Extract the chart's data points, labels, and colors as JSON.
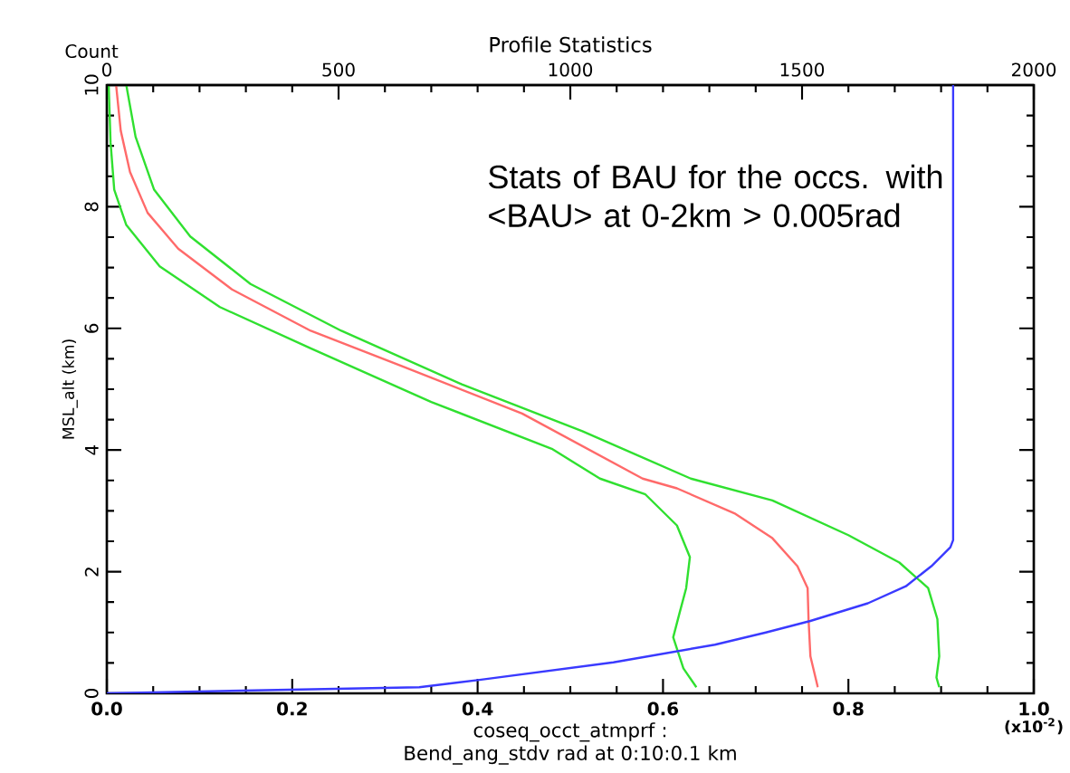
{
  "chart_data": {
    "type": "line",
    "title": "Profile Statistics",
    "xlabel": "coseq_occt_atmprf : Bend_ang_stdv rad at 0:10:0.1 km",
    "ylabel": "MSL_alt (km)",
    "x2label": "Count",
    "xlim": [
      0,
      1
    ],
    "xticks": [
      {
        "value": 0,
        "label": "0.0"
      },
      0.2,
      0.4,
      0.6,
      0.8,
      {
        "value": 1,
        "label": "1.0"
      }
    ],
    "x2lim": [
      0,
      2000
    ],
    "x2ticks": [
      0,
      500,
      1000,
      1500,
      2000
    ],
    "ylim": [
      0,
      10
    ],
    "yticks": [
      0,
      2,
      4,
      6,
      8,
      10
    ],
    "annotations": [
      "Stats of BAU for the occs. with <BAU> at 0-2km > 0.005rad",
      "(x10$^{-2}$)"
    ],
    "series": [
      {
        "color": "#30e030",
        "x": [
          0.021,
          0.031,
          0.051,
          0.09,
          0.155,
          0.253,
          0.383,
          0.513,
          0.63,
          0.718,
          0.8,
          0.855,
          0.886,
          0.896,
          0.898,
          0.895,
          0.898
        ],
        "values": [
          10,
          9.15,
          8.28,
          7.51,
          6.73,
          5.96,
          5.08,
          4.31,
          3.53,
          3.17,
          2.6,
          2.15,
          1.73,
          1.22,
          0.61,
          0.26,
          0.1
        ]
      },
      {
        "color": "#ff6a6a",
        "x": [
          0.01,
          0.015,
          0.025,
          0.044,
          0.077,
          0.135,
          0.22,
          0.318,
          0.448,
          0.578,
          0.615,
          0.677,
          0.718,
          0.745,
          0.756,
          0.757,
          0.759,
          0.767
        ],
        "values": [
          10,
          9.25,
          8.57,
          7.9,
          7.31,
          6.64,
          5.96,
          5.38,
          4.6,
          3.53,
          3.37,
          2.96,
          2.55,
          2.09,
          1.73,
          1.22,
          0.61,
          0.1
        ]
      },
      {
        "color": "#30e030",
        "x": [
          0.002,
          0.004,
          0.008,
          0.021,
          0.057,
          0.122,
          0.22,
          0.35,
          0.48,
          0.532,
          0.581,
          0.615,
          0.629,
          0.625,
          0.618,
          0.611,
          0.622,
          0.636
        ],
        "values": [
          10,
          9.06,
          8.28,
          7.7,
          7.02,
          6.35,
          5.67,
          4.79,
          4.02,
          3.53,
          3.27,
          2.76,
          2.24,
          1.73,
          1.33,
          0.92,
          0.41,
          0.1
        ]
      },
      {
        "color": "#3a3aff",
        "axis": "x2",
        "x": [
          0,
          674,
          804,
          1093,
          1312,
          1422,
          1518,
          1642,
          1724,
          1779,
          1820,
          1826,
          1826
        ],
        "values": [
          0,
          0.1,
          0.22,
          0.51,
          0.8,
          1.0,
          1.19,
          1.48,
          1.76,
          2.09,
          2.4,
          2.52,
          10
        ]
      }
    ]
  }
}
